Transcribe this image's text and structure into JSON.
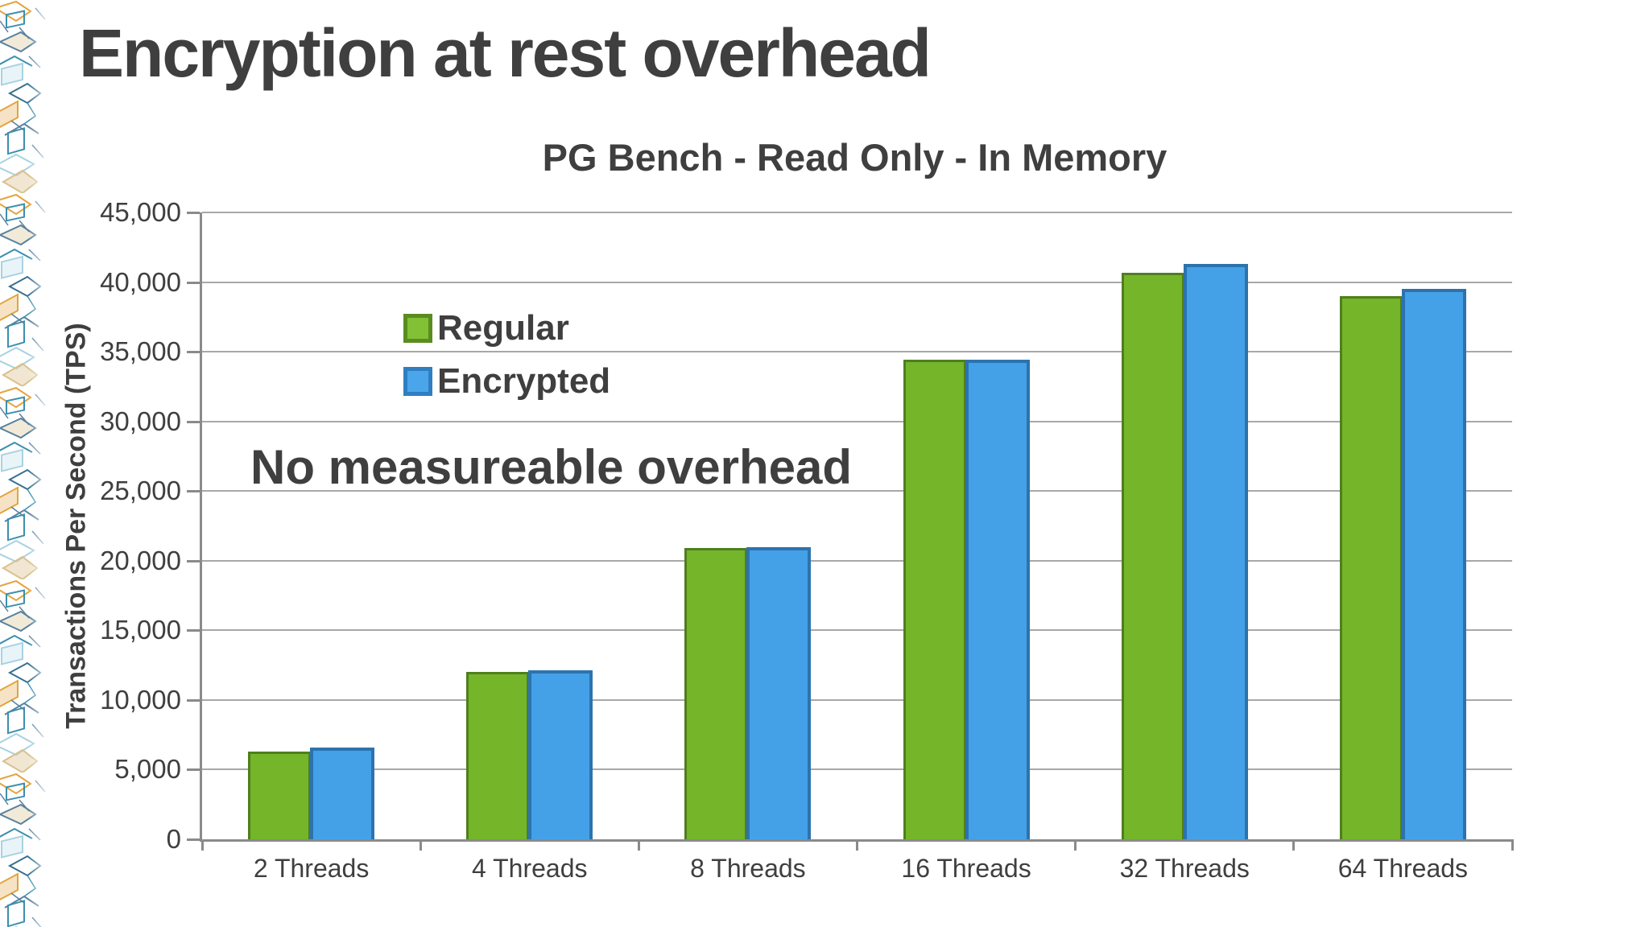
{
  "slide": {
    "title": "Encryption at rest overhead"
  },
  "chart_data": {
    "type": "bar",
    "title": "PG Bench - Read Only - In Memory",
    "ylabel": "Transactions Per Second (TPS)",
    "xlabel": "",
    "categories": [
      "2 Threads",
      "4 Threads",
      "8 Threads",
      "16 Threads",
      "32 Threads",
      "64 Threads"
    ],
    "series": [
      {
        "name": "Regular",
        "values": [
          6150,
          11850,
          20750,
          34250,
          40500,
          38800
        ]
      },
      {
        "name": "Encrypted",
        "values": [
          6350,
          11900,
          20750,
          34200,
          41100,
          39300
        ]
      }
    ],
    "ylim": [
      0,
      45000
    ],
    "ytick_step": 5000,
    "ytick_labels": [
      "0",
      "5,000",
      "10,000",
      "15,000",
      "20,000",
      "25,000",
      "30,000",
      "35,000",
      "40,000",
      "45,000"
    ],
    "grid": "horizontal",
    "legend_position": "inside-upper-left",
    "annotation": "No measureable overhead"
  },
  "colors": {
    "regular_fill": "#74b52a",
    "regular_border": "#507e1e",
    "encrypted_fill": "#44a1e8",
    "encrypted_border": "#2c73ae",
    "text": "#3f3f3f",
    "gridline": "#a8a8a8",
    "axis": "#8a8a8a",
    "background": "#ffffff",
    "deco_teal": "#3b8fae",
    "deco_slate": "#58819e",
    "deco_orange": "#e3a43e",
    "deco_tan": "#d9c18e",
    "deco_pale_blue": "#a7d2e2"
  }
}
